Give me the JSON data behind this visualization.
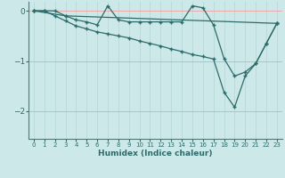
{
  "xlabel": "Humidex (Indice chaleur)",
  "bg_color": "#cde8e8",
  "line_color": "#2d6b6b",
  "grid_color_h": "#f0a0a0",
  "grid_color_v": "#b8d8d8",
  "xlim": [
    -0.5,
    23.5
  ],
  "ylim": [
    -2.55,
    0.18
  ],
  "yticks": [
    0,
    -1,
    -2
  ],
  "xticks": [
    0,
    1,
    2,
    3,
    4,
    5,
    6,
    7,
    8,
    9,
    10,
    11,
    12,
    13,
    14,
    15,
    16,
    17,
    18,
    19,
    20,
    21,
    22,
    23
  ],
  "line1_x": [
    0,
    1,
    2,
    3,
    4,
    5,
    6,
    7,
    8,
    9,
    10,
    11,
    12,
    13,
    14,
    15,
    16,
    17,
    18,
    19,
    20,
    21,
    22,
    23
  ],
  "line1_y": [
    0.0,
    0.0,
    0.0,
    -0.1,
    -0.18,
    -0.22,
    -0.28,
    0.1,
    -0.18,
    -0.22,
    -0.22,
    -0.22,
    -0.22,
    -0.22,
    -0.22,
    0.1,
    0.06,
    -0.28,
    -0.95,
    -1.3,
    -1.22,
    -1.05,
    -0.65,
    -0.25
  ],
  "line2_x": [
    0,
    1,
    2,
    3,
    4,
    5,
    6,
    7,
    8,
    9,
    10,
    11,
    12,
    13,
    14,
    15,
    16,
    17,
    18,
    19,
    20,
    21,
    22,
    23
  ],
  "line2_y": [
    0.0,
    0.0,
    -0.1,
    -0.2,
    -0.3,
    -0.36,
    -0.42,
    -0.46,
    -0.5,
    -0.54,
    -0.6,
    -0.65,
    -0.7,
    -0.76,
    -0.81,
    -0.87,
    -0.91,
    -0.96,
    -1.62,
    -1.92,
    -1.3,
    -1.05,
    -0.65,
    -0.25
  ],
  "line3_x": [
    0,
    3,
    23
  ],
  "line3_y": [
    0.0,
    -0.1,
    -0.25
  ]
}
